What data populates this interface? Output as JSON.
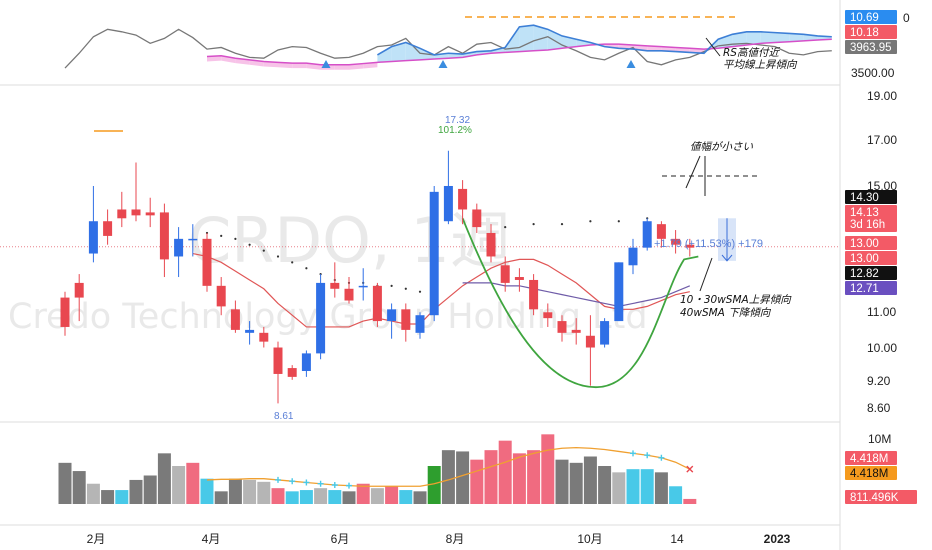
{
  "chart_data": [
    {
      "type": "line",
      "panel": "RS indicator",
      "ylim": [
        3400,
        4200
      ],
      "series": [
        {
          "color": "#777777",
          "values": [
            3520,
            3700,
            3900,
            3990,
            3960,
            3920,
            3820,
            3880,
            3990,
            3890,
            3750,
            3770,
            3700,
            3650,
            3640,
            3740,
            3780,
            3770,
            3700,
            3640,
            3650,
            3700,
            3780,
            3800,
            3880,
            3700,
            3680,
            3780,
            3700,
            3810,
            3830,
            3750,
            3770,
            3850,
            3900,
            3800,
            3730,
            3650,
            3620,
            3700,
            3770,
            3600,
            3560,
            3620,
            3650,
            3720,
            3790,
            3810,
            3820,
            3800,
            3780,
            3700,
            3680,
            3720,
            3730
          ]
        },
        {
          "color": "#3d7fd6",
          "values": [
            null,
            null,
            null,
            null,
            null,
            null,
            null,
            null,
            null,
            null,
            null,
            null,
            null,
            null,
            null,
            null,
            null,
            null,
            null,
            null,
            null,
            null,
            3680,
            3780,
            3830,
            3760,
            3680,
            3700,
            3690,
            3720,
            3730,
            3770,
            4020,
            4040,
            3990,
            3910,
            3870,
            3830,
            3780,
            3760,
            3750,
            3730,
            3730,
            3720,
            3710,
            3700,
            3870,
            3930,
            3960,
            3960,
            3950,
            3940,
            3930,
            3910,
            3900
          ]
        },
        {
          "color": "#d64fc8",
          "values": [
            null,
            null,
            null,
            null,
            null,
            null,
            null,
            null,
            null,
            null,
            3660,
            3670,
            3640,
            3620,
            3600,
            3590,
            3580,
            3580,
            3560,
            3560,
            3560,
            3575,
            3590,
            3600,
            3610,
            3620,
            3630,
            3640,
            3650,
            3680,
            3700,
            3710,
            3720,
            3730,
            3740,
            3760,
            3780,
            3800,
            3810,
            3810,
            3800,
            3790,
            3780,
            3770,
            3760,
            3750,
            3760,
            3780,
            3800,
            3820,
            3830,
            3840,
            3850,
            3860,
            3870
          ]
        }
      ],
      "dashed_levels": [
        4010
      ],
      "labels": {
        "right_blue": "10.69",
        "right_red": "10.18",
        "right_gray": "3963.95",
        "right_axis": "3500.00",
        "right_axis_top": "0"
      },
      "annotation": [
        "RS高値付近",
        "平均線上昇傾向"
      ]
    },
    {
      "type": "candlestick",
      "panel": "price",
      "watermark_ticker": "CRDO, 1週",
      "watermark_name": "Credo Technology Group Holding Ltd",
      "ylim": [
        8.3,
        19.4
      ],
      "y_ticks": [
        "19.00",
        "17.00",
        "15.00",
        "11.00",
        "10.00",
        "9.20",
        "8.60"
      ],
      "x_ticks": [
        "2月",
        "4月",
        "6月",
        "8月",
        "10月",
        "14",
        "2023"
      ],
      "candles": [
        {
          "o": 11.4,
          "h": 12.6,
          "l": 11.1,
          "c": 12.4,
          "up": false
        },
        {
          "o": 12.4,
          "h": 13.2,
          "l": 11.6,
          "c": 12.9,
          "up": false
        },
        {
          "o": 13.9,
          "h": 16.2,
          "l": 13.6,
          "c": 15.0,
          "up": true
        },
        {
          "o": 15.0,
          "h": 15.4,
          "l": 14.2,
          "c": 14.5,
          "up": false
        },
        {
          "o": 15.1,
          "h": 16.0,
          "l": 14.8,
          "c": 15.4,
          "up": false
        },
        {
          "o": 15.4,
          "h": 17.0,
          "l": 15.0,
          "c": 15.2,
          "up": false
        },
        {
          "o": 15.2,
          "h": 15.8,
          "l": 14.8,
          "c": 15.3,
          "up": false
        },
        {
          "o": 15.3,
          "h": 15.6,
          "l": 13.1,
          "c": 13.7,
          "up": false
        },
        {
          "o": 13.8,
          "h": 14.8,
          "l": 13.1,
          "c": 14.4,
          "up": true
        },
        {
          "o": 14.4,
          "h": 14.9,
          "l": 13.8,
          "c": 14.4,
          "up": true
        },
        {
          "o": 14.4,
          "h": 14.6,
          "l": 12.6,
          "c": 12.8,
          "up": false
        },
        {
          "o": 12.8,
          "h": 13.1,
          "l": 11.8,
          "c": 12.1,
          "up": false
        },
        {
          "o": 12.0,
          "h": 12.3,
          "l": 11.2,
          "c": 11.3,
          "up": false
        },
        {
          "o": 11.3,
          "h": 11.6,
          "l": 10.8,
          "c": 11.2,
          "up": true
        },
        {
          "o": 11.2,
          "h": 11.4,
          "l": 10.7,
          "c": 10.9,
          "up": false
        },
        {
          "o": 10.7,
          "h": 10.9,
          "l": 8.8,
          "c": 9.8,
          "up": false
        },
        {
          "o": 10.0,
          "h": 10.1,
          "l": 9.6,
          "c": 9.7,
          "up": false
        },
        {
          "o": 9.9,
          "h": 10.6,
          "l": 9.7,
          "c": 10.5,
          "up": true
        },
        {
          "o": 10.5,
          "h": 13.2,
          "l": 10.3,
          "c": 12.9,
          "up": true
        },
        {
          "o": 12.9,
          "h": 13.6,
          "l": 12.4,
          "c": 12.7,
          "up": false
        },
        {
          "o": 12.7,
          "h": 13.1,
          "l": 12.2,
          "c": 12.3,
          "up": false
        },
        {
          "o": 12.8,
          "h": 13.4,
          "l": 12.3,
          "c": 12.8,
          "up": true
        },
        {
          "o": 12.8,
          "h": 12.9,
          "l": 11.4,
          "c": 11.6,
          "up": false
        },
        {
          "o": 11.6,
          "h": 12.2,
          "l": 11.0,
          "c": 12.0,
          "up": true
        },
        {
          "o": 12.0,
          "h": 12.2,
          "l": 10.9,
          "c": 11.3,
          "up": false
        },
        {
          "o": 11.2,
          "h": 11.9,
          "l": 11.0,
          "c": 11.8,
          "up": true
        },
        {
          "o": 11.8,
          "h": 16.2,
          "l": 11.6,
          "c": 16.0,
          "up": true
        },
        {
          "o": 15.0,
          "h": 17.4,
          "l": 14.9,
          "c": 16.2,
          "up": true
        },
        {
          "o": 16.1,
          "h": 16.4,
          "l": 14.9,
          "c": 15.4,
          "up": false
        },
        {
          "o": 15.4,
          "h": 15.6,
          "l": 14.6,
          "c": 14.8,
          "up": false
        },
        {
          "o": 14.6,
          "h": 14.9,
          "l": 13.6,
          "c": 13.8,
          "up": false
        },
        {
          "o": 13.5,
          "h": 13.8,
          "l": 12.6,
          "c": 12.9,
          "up": false
        },
        {
          "o": 13.0,
          "h": 13.4,
          "l": 12.6,
          "c": 13.1,
          "up": false
        },
        {
          "o": 13.0,
          "h": 13.2,
          "l": 11.8,
          "c": 12.0,
          "up": false
        },
        {
          "o": 11.9,
          "h": 12.2,
          "l": 11.4,
          "c": 11.7,
          "up": false
        },
        {
          "o": 11.6,
          "h": 11.8,
          "l": 10.9,
          "c": 11.2,
          "up": false
        },
        {
          "o": 11.2,
          "h": 11.7,
          "l": 10.8,
          "c": 11.3,
          "up": false
        },
        {
          "o": 11.1,
          "h": 11.8,
          "l": 9.4,
          "c": 10.7,
          "up": false
        },
        {
          "o": 10.8,
          "h": 11.7,
          "l": 10.7,
          "c": 11.6,
          "up": true
        },
        {
          "o": 11.6,
          "h": 13.6,
          "l": 11.6,
          "c": 13.6,
          "up": true
        },
        {
          "o": 13.5,
          "h": 14.4,
          "l": 13.2,
          "c": 14.1,
          "up": true
        },
        {
          "o": 14.1,
          "h": 15.1,
          "l": 14.0,
          "c": 15.0,
          "up": true
        },
        {
          "o": 14.9,
          "h": 15.0,
          "l": 14.1,
          "c": 14.4,
          "up": false
        },
        {
          "o": 14.4,
          "h": 14.7,
          "l": 13.9,
          "c": 14.2,
          "up": false
        },
        {
          "o": 14.2,
          "h": 14.4,
          "l": 13.8,
          "c": 14.1,
          "up": false
        }
      ],
      "sma10": [
        null,
        null,
        null,
        null,
        null,
        null,
        null,
        null,
        null,
        13.9,
        13.8,
        13.6,
        13.3,
        13.0,
        12.7,
        12.2,
        11.8,
        11.4,
        11.4,
        11.4,
        11.4,
        11.6,
        11.7,
        11.6,
        11.5,
        11.5,
        12.0,
        12.4,
        12.8,
        13.1,
        13.4,
        13.6,
        13.7,
        13.7,
        13.5,
        13.2,
        12.9,
        12.5,
        12.1,
        12.0,
        12.0,
        12.1,
        12.3,
        12.5,
        12.6
      ],
      "sma30": [
        null,
        null,
        null,
        null,
        null,
        null,
        null,
        null,
        null,
        null,
        null,
        null,
        null,
        null,
        null,
        null,
        null,
        null,
        null,
        null,
        null,
        null,
        null,
        null,
        null,
        null,
        null,
        null,
        12.9,
        12.9,
        12.9,
        12.8,
        12.8,
        12.7,
        12.6,
        12.5,
        12.4,
        12.3,
        12.2,
        12.1,
        12.2,
        12.3,
        12.4,
        12.6,
        12.8
      ],
      "sma40_dots": [
        14.6,
        14.5,
        14.4,
        14.2,
        14.0,
        13.8,
        13.6,
        13.4,
        13.2,
        13.0,
        12.9,
        12.9,
        12.8,
        12.8,
        12.7,
        12.6
      ],
      "upper_dots": [
        14.8,
        14.9,
        14.9,
        15.0,
        15.0,
        15.1
      ],
      "cup_curve": true,
      "resistance_level": 14.6,
      "labels": {
        "high": "17.32",
        "high_pct": "101.2%",
        "low": "8.61",
        "measure": "+1.79 (+11.53%) +179",
        "annot_top": "値幅が小さい",
        "annot_bottom": [
          "10・30wSMA上昇傾向",
          "40wSMA 下降傾向"
        ],
        "badge_black1": "14.30",
        "badge_red_price": "14.13",
        "badge_red_time": "3d 16h",
        "badge_red2": "13.00",
        "badge_red3": "13.00",
        "badge_black2": "12.82",
        "badge_purple": "12.71"
      }
    },
    {
      "type": "bar",
      "panel": "volume",
      "ylim": [
        0,
        12
      ],
      "values": [
        6.5,
        5.2,
        3.2,
        2.2,
        2.2,
        3.8,
        4.5,
        8.0,
        6.0,
        6.5,
        4.0,
        2.0,
        4.0,
        3.8,
        3.5,
        2.5,
        2.0,
        2.2,
        2.5,
        2.2,
        2.0,
        3.2,
        2.5,
        2.8,
        2.2,
        2.0,
        6.0,
        8.5,
        8.3,
        7.0,
        8.5,
        10.0,
        8.0,
        8.5,
        11.0,
        7.0,
        6.5,
        7.5,
        6.0,
        5.0,
        5.5,
        5.5,
        5.0,
        2.8,
        0.8
      ],
      "colors": [
        "#7a7a7a",
        "#7a7a7a",
        "#b5b5b5",
        "#7a7a7a",
        "#48c9e8",
        "#7a7a7a",
        "#7a7a7a",
        "#7a7a7a",
        "#b5b5b5",
        "#f06b80",
        "#48c9e8",
        "#7a7a7a",
        "#7a7a7a",
        "#b5b5b5",
        "#b5b5b5",
        "#f06b80",
        "#48c9e8",
        "#48c9e8",
        "#b5b5b5",
        "#48c9e8",
        "#7a7a7a",
        "#f06b80",
        "#b5b5b5",
        "#f06b80",
        "#48c9e8",
        "#7a7a7a",
        "#2e9e2e",
        "#7a7a7a",
        "#7a7a7a",
        "#f06b80",
        "#f06b80",
        "#f06b80",
        "#f06b80",
        "#f06b80",
        "#f06b80",
        "#7a7a7a",
        "#7a7a7a",
        "#7a7a7a",
        "#7a7a7a",
        "#b5b5b5",
        "#48c9e8",
        "#48c9e8",
        "#7a7a7a",
        "#48c9e8",
        "#f06b80"
      ],
      "vol_ma": [
        null,
        null,
        null,
        null,
        null,
        null,
        null,
        null,
        null,
        null,
        3.8,
        3.9,
        3.9,
        4.0,
        4.0,
        3.8,
        3.6,
        3.4,
        3.2,
        3.0,
        2.9,
        2.8,
        2.8,
        2.8,
        2.8,
        2.8,
        3.2,
        3.8,
        4.5,
        5.2,
        5.9,
        6.6,
        7.4,
        8.0,
        8.5,
        8.8,
        8.9,
        8.8,
        8.6,
        8.3,
        8.0,
        7.7,
        7.3,
        6.6,
        5.5
      ],
      "y_ticks": [
        "10M"
      ],
      "labels": {
        "badge_red": "4.418M",
        "badge_orange": "4.418M",
        "badge_pink": "811.496K"
      }
    }
  ]
}
